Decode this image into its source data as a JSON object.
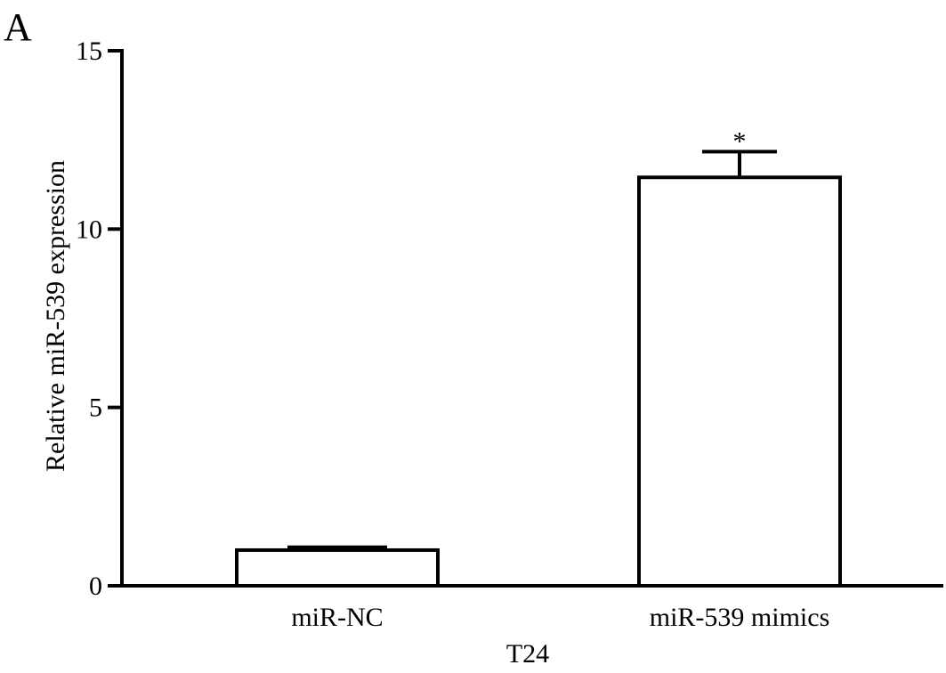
{
  "panel_label": "A",
  "chart_data": {
    "type": "bar",
    "title": "",
    "xlabel": "T24",
    "ylabel": "Relative miR-539 expression",
    "ylim": [
      0,
      15
    ],
    "yticks": [
      0,
      5,
      10,
      15
    ],
    "categories": [
      "miR-NC",
      "miR-539 mimics"
    ],
    "values": [
      1.0,
      11.45
    ],
    "errors": [
      0.08,
      0.72
    ],
    "annotations": [
      "",
      "*"
    ],
    "bar_fill": "#ffffff",
    "bar_stroke": "#000000",
    "grid": false
  }
}
